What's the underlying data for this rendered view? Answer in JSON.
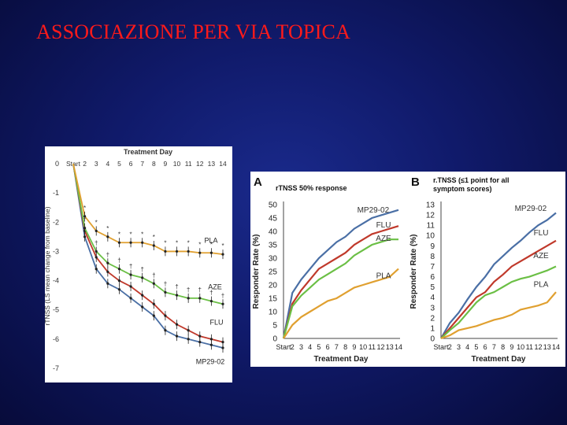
{
  "slide": {
    "title": "ASSOCIAZIONE PER VIA TOPICA"
  },
  "colors": {
    "PLA": "#e0a030",
    "AZE": "#6bbf45",
    "FLU": "#c0392b",
    "MP29-02": "#4a6fa5"
  },
  "chart_data": [
    {
      "type": "line",
      "top_label": "Treatment Day",
      "ylabel": "rTNSS (LS mean change from baseline)",
      "x": [
        "Start",
        "2",
        "3",
        "4",
        "5",
        "6",
        "7",
        "8",
        "9",
        "10",
        "11",
        "12",
        "13",
        "14"
      ],
      "ylim": [
        -7,
        0
      ],
      "yticks": [
        "0",
        "-1",
        "-2",
        "-3",
        "-4",
        "-5",
        "-6",
        "-7"
      ],
      "series": [
        {
          "name": "PLA",
          "values": [
            0,
            -1.8,
            -2.3,
            -2.5,
            -2.7,
            -2.7,
            -2.7,
            -2.8,
            -3.0,
            -3.0,
            -3.0,
            -3.05,
            -3.05,
            -3.1
          ]
        },
        {
          "name": "AZE",
          "values": [
            0,
            -2.2,
            -3.0,
            -3.4,
            -3.6,
            -3.8,
            -3.9,
            -4.1,
            -4.4,
            -4.5,
            -4.6,
            -4.6,
            -4.7,
            -4.8
          ]
        },
        {
          "name": "FLU",
          "values": [
            0,
            -2.3,
            -3.2,
            -3.7,
            -4.0,
            -4.2,
            -4.5,
            -4.8,
            -5.2,
            -5.5,
            -5.7,
            -5.9,
            -6.0,
            -6.1
          ]
        },
        {
          "name": "MP29-02",
          "values": [
            0,
            -2.5,
            -3.6,
            -4.1,
            -4.3,
            -4.6,
            -4.9,
            -5.2,
            -5.7,
            -5.9,
            -6.0,
            -6.1,
            -6.2,
            -6.3
          ]
        }
      ],
      "markers": {
        "PLA": [
          "",
          "*",
          "*",
          "*",
          "*",
          "*",
          "*",
          "*",
          "*",
          "*",
          "*",
          "*",
          "*",
          "*"
        ],
        "AZE": [
          "",
          "†",
          "†",
          "†",
          "†",
          "†",
          "†",
          "†",
          "†",
          "†",
          "†",
          "†",
          "†",
          "†"
        ]
      },
      "legend": "labels placed at right end of each line"
    },
    {
      "type": "line",
      "panel_label": "A",
      "title": "rTNSS 50% response",
      "xlabel": "Treatment Day",
      "ylabel": "Responder Rate (%)",
      "x": [
        "Start",
        "2",
        "3",
        "4",
        "5",
        "6",
        "7",
        "8",
        "9",
        "10",
        "11",
        "12",
        "13",
        "14"
      ],
      "ylim": [
        0,
        50
      ],
      "yticks": [
        "0",
        "5",
        "10",
        "15",
        "20",
        "25",
        "30",
        "35",
        "40",
        "45",
        "50"
      ],
      "series": [
        {
          "name": "MP29-02",
          "values": [
            0,
            17,
            22,
            26,
            30,
            33,
            36,
            38,
            41,
            43,
            45,
            46,
            47,
            48
          ]
        },
        {
          "name": "FLU",
          "values": [
            0,
            13,
            18,
            22,
            26,
            28,
            30,
            32,
            35,
            37,
            39,
            40,
            41,
            42
          ]
        },
        {
          "name": "AZE",
          "values": [
            0,
            12,
            16,
            19,
            22,
            24,
            26,
            28,
            31,
            33,
            35,
            36,
            37,
            37
          ]
        },
        {
          "name": "PLA",
          "values": [
            0,
            5,
            8,
            10,
            12,
            14,
            15,
            17,
            19,
            20,
            21,
            22,
            23,
            26
          ]
        }
      ]
    },
    {
      "type": "line",
      "panel_label": "B",
      "title": "r.TNSS (≤1 point for all symptom scores)",
      "xlabel": "Treatment Day",
      "ylabel": "Responder Rate (%)",
      "x": [
        "Start",
        "2",
        "3",
        "4",
        "5",
        "6",
        "7",
        "8",
        "9",
        "10",
        "11",
        "12",
        "13",
        "14"
      ],
      "ylim": [
        0,
        13
      ],
      "yticks": [
        "0",
        "1",
        "2",
        "3",
        "4",
        "5",
        "6",
        "7",
        "8",
        "9",
        "10",
        "11",
        "12",
        "13"
      ],
      "series": [
        {
          "name": "MP29-02",
          "values": [
            0,
            1.5,
            2.5,
            3.8,
            5.0,
            6.0,
            7.2,
            8.0,
            8.8,
            9.5,
            10.3,
            11.0,
            11.5,
            12.2
          ]
        },
        {
          "name": "FLU",
          "values": [
            0,
            1.0,
            2.0,
            3.0,
            4.0,
            4.5,
            5.5,
            6.2,
            7.0,
            7.5,
            8.0,
            8.5,
            9.0,
            9.5
          ]
        },
        {
          "name": "AZE",
          "values": [
            0,
            0.8,
            1.5,
            2.5,
            3.5,
            4.2,
            4.5,
            5.0,
            5.5,
            5.8,
            6.0,
            6.3,
            6.6,
            7.0
          ]
        },
        {
          "name": "PLA",
          "values": [
            0,
            0.3,
            0.8,
            1.0,
            1.2,
            1.5,
            1.8,
            2.0,
            2.3,
            2.8,
            3.0,
            3.2,
            3.5,
            4.5
          ]
        }
      ]
    }
  ]
}
